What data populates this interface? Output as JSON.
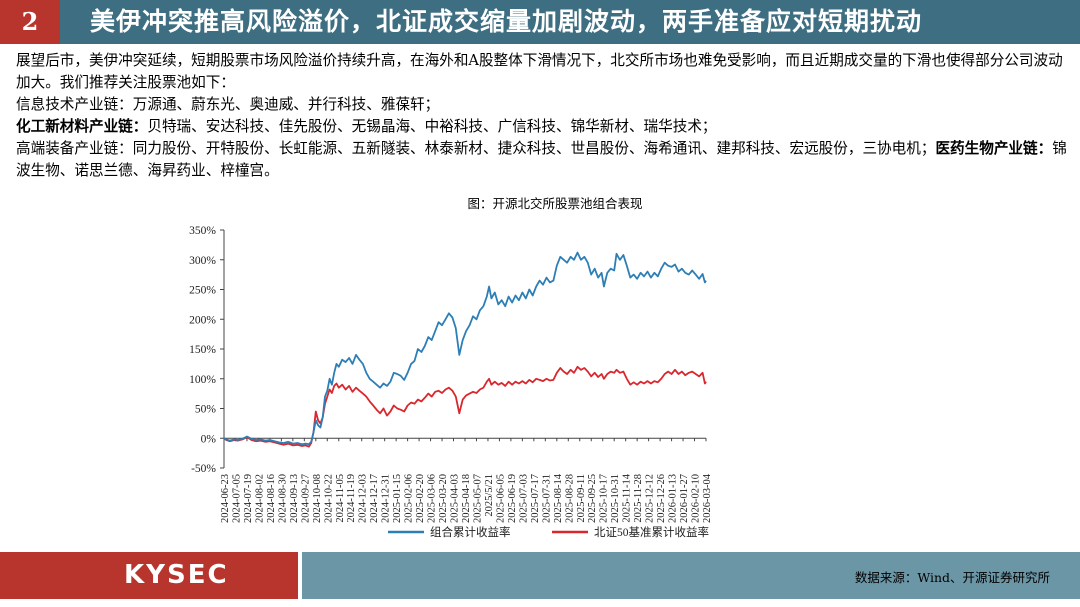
{
  "header": {
    "number": "2",
    "title": "美伊冲突推高风险溢价，北证成交缩量加剧波动，两手准备应对短期扰动"
  },
  "body": {
    "intro": "展望后市，美伊冲突延续，短期股票市场风险溢价持续升高，在海外和A股整体下滑情况下，北交所市场也难免受影响，而且近期成交量的下滑也使得部分公司波动加大。我们推荐关注股票池如下：",
    "chain1_label": "信息技术产业链：",
    "chain1_items": "万源通、蔚东光、奥迪威、并行科技、雅葆轩；",
    "chain2_label": "化工新材料产业链：",
    "chain2_items": "贝特瑞、安达科技、佳先股份、无锡晶海、中裕科技、广信科技、锦华新材、瑞华技术；",
    "chain3_label": "高端装备产业链：",
    "chain3_items": "同力股份、开特股份、长虹能源、五新隧装、林泰新材、捷众科技、世昌股份、海希通讯、建邦科技、宏远股份，三协电机；",
    "chain4_label": "医药生物产业链：",
    "chain4_items": "锦波生物、诺思兰德、海昇药业、梓橦宫。"
  },
  "chart_title": "图：开源北交所股票池组合表现",
  "chart_data": {
    "type": "line",
    "ylim": [
      -50,
      350
    ],
    "yticks": [
      "350%",
      "300%",
      "250%",
      "200%",
      "150%",
      "100%",
      "50%",
      "0%",
      "-50%"
    ],
    "ytick_values": [
      350,
      300,
      250,
      200,
      150,
      100,
      50,
      0,
      -50
    ],
    "grid": false,
    "legend_position": "bottom",
    "x_labels": [
      "2024-06-23",
      "2024-07-05",
      "2024-07-19",
      "2024-08-02",
      "2024-08-16",
      "2024-08-30",
      "2024-09-13",
      "2024-09-27",
      "2024-10-08",
      "2024-10-22",
      "2024-11-05",
      "2024-11-19",
      "2024-12-03",
      "2024-12-17",
      "2024-12-31",
      "2025-01-15",
      "2025-02-06",
      "2025-02-20",
      "2025-03-06",
      "2025-03-20",
      "2025-04-03",
      "2025-04-18",
      "2025-05-07",
      "2025/5/21",
      "2025-06-05",
      "2025-06-19",
      "2025-07-03",
      "2025-07-17",
      "2025-07-31",
      "2025-08-14",
      "2025-08-28",
      "2025-09-11",
      "2025-09-25",
      "2025-10-17",
      "2025-10-31",
      "2025-11-14",
      "2025-11-28",
      "2025-12-12",
      "2025-12-26",
      "2026-01-13",
      "2026-01-27",
      "2026-02-10",
      "2026-03-04"
    ],
    "series": [
      {
        "name": "组合累计收益率",
        "color": "#2e7eb6",
        "points": [
          [
            0,
            0
          ],
          [
            0.2,
            -2
          ],
          [
            0.5,
            -4
          ],
          [
            0.9,
            -2
          ],
          [
            1.2,
            -3
          ],
          [
            1.6,
            -1
          ],
          [
            2.0,
            3
          ],
          [
            2.4,
            -1
          ],
          [
            2.8,
            -3
          ],
          [
            3.2,
            -2
          ],
          [
            3.6,
            -4
          ],
          [
            4.0,
            -3
          ],
          [
            4.4,
            -5
          ],
          [
            4.8,
            -7
          ],
          [
            5.2,
            -8
          ],
          [
            5.6,
            -6
          ],
          [
            6.0,
            -9
          ],
          [
            6.4,
            -8
          ],
          [
            6.8,
            -10
          ],
          [
            7.1,
            -9
          ],
          [
            7.4,
            -10
          ],
          [
            7.6,
            -6
          ],
          [
            7.8,
            10
          ],
          [
            8.0,
            30
          ],
          [
            8.2,
            22
          ],
          [
            8.4,
            18
          ],
          [
            8.6,
            35
          ],
          [
            8.8,
            70
          ],
          [
            9.0,
            80
          ],
          [
            9.2,
            100
          ],
          [
            9.4,
            90
          ],
          [
            9.6,
            110
          ],
          [
            9.8,
            125
          ],
          [
            10.0,
            120
          ],
          [
            10.3,
            132
          ],
          [
            10.6,
            128
          ],
          [
            10.9,
            135
          ],
          [
            11.2,
            125
          ],
          [
            11.5,
            140
          ],
          [
            11.8,
            132
          ],
          [
            12.1,
            125
          ],
          [
            12.4,
            110
          ],
          [
            12.7,
            100
          ],
          [
            13.0,
            95
          ],
          [
            13.3,
            90
          ],
          [
            13.6,
            85
          ],
          [
            13.9,
            92
          ],
          [
            14.2,
            88
          ],
          [
            14.5,
            95
          ],
          [
            14.8,
            110
          ],
          [
            15.1,
            108
          ],
          [
            15.4,
            105
          ],
          [
            15.7,
            98
          ],
          [
            16.0,
            110
          ],
          [
            16.3,
            125
          ],
          [
            16.6,
            130
          ],
          [
            16.9,
            150
          ],
          [
            17.2,
            145
          ],
          [
            17.5,
            155
          ],
          [
            17.8,
            170
          ],
          [
            18.1,
            165
          ],
          [
            18.4,
            180
          ],
          [
            18.7,
            195
          ],
          [
            19.0,
            190
          ],
          [
            19.3,
            200
          ],
          [
            19.6,
            210
          ],
          [
            19.9,
            203
          ],
          [
            20.2,
            185
          ],
          [
            20.5,
            140
          ],
          [
            20.8,
            165
          ],
          [
            21.1,
            180
          ],
          [
            21.4,
            190
          ],
          [
            21.7,
            205
          ],
          [
            22.0,
            200
          ],
          [
            22.3,
            215
          ],
          [
            22.6,
            222
          ],
          [
            22.9,
            238
          ],
          [
            23.1,
            255
          ],
          [
            23.3,
            235
          ],
          [
            23.6,
            245
          ],
          [
            23.9,
            225
          ],
          [
            24.2,
            232
          ],
          [
            24.5,
            222
          ],
          [
            24.8,
            238
          ],
          [
            25.1,
            228
          ],
          [
            25.4,
            240
          ],
          [
            25.7,
            232
          ],
          [
            26.0,
            245
          ],
          [
            26.3,
            235
          ],
          [
            26.6,
            250
          ],
          [
            26.9,
            240
          ],
          [
            27.2,
            255
          ],
          [
            27.5,
            265
          ],
          [
            27.8,
            258
          ],
          [
            28.1,
            270
          ],
          [
            28.4,
            262
          ],
          [
            28.7,
            265
          ],
          [
            29.0,
            290
          ],
          [
            29.3,
            305
          ],
          [
            29.6,
            300
          ],
          [
            29.9,
            295
          ],
          [
            30.2,
            305
          ],
          [
            30.5,
            300
          ],
          [
            30.8,
            312
          ],
          [
            31.1,
            300
          ],
          [
            31.4,
            305
          ],
          [
            31.7,
            295
          ],
          [
            32.0,
            275
          ],
          [
            32.3,
            285
          ],
          [
            32.6,
            270
          ],
          [
            32.9,
            278
          ],
          [
            33.1,
            255
          ],
          [
            33.4,
            278
          ],
          [
            33.7,
            285
          ],
          [
            34.0,
            282
          ],
          [
            34.2,
            310
          ],
          [
            34.5,
            300
          ],
          [
            34.8,
            308
          ],
          [
            35.1,
            290
          ],
          [
            35.4,
            270
          ],
          [
            35.7,
            275
          ],
          [
            36.0,
            268
          ],
          [
            36.3,
            278
          ],
          [
            36.6,
            272
          ],
          [
            36.9,
            280
          ],
          [
            37.2,
            270
          ],
          [
            37.5,
            278
          ],
          [
            37.8,
            272
          ],
          [
            38.1,
            285
          ],
          [
            38.4,
            295
          ],
          [
            38.7,
            290
          ],
          [
            39.0,
            288
          ],
          [
            39.3,
            292
          ],
          [
            39.6,
            280
          ],
          [
            39.9,
            285
          ],
          [
            40.2,
            278
          ],
          [
            40.5,
            275
          ],
          [
            40.8,
            282
          ],
          [
            41.1,
            275
          ],
          [
            41.4,
            268
          ],
          [
            41.7,
            276
          ],
          [
            41.9,
            262
          ],
          [
            42.0,
            265
          ]
        ]
      },
      {
        "name": "北证50基准累计收益率",
        "color": "#d9272e",
        "points": [
          [
            0,
            0
          ],
          [
            0.2,
            -3
          ],
          [
            0.5,
            -5
          ],
          [
            0.9,
            -3
          ],
          [
            1.2,
            -4
          ],
          [
            1.6,
            -2
          ],
          [
            2.0,
            2
          ],
          [
            2.4,
            -3
          ],
          [
            2.8,
            -5
          ],
          [
            3.2,
            -4
          ],
          [
            3.6,
            -6
          ],
          [
            4.0,
            -5
          ],
          [
            4.4,
            -7
          ],
          [
            4.8,
            -9
          ],
          [
            5.2,
            -11
          ],
          [
            5.6,
            -9
          ],
          [
            6.0,
            -12
          ],
          [
            6.4,
            -11
          ],
          [
            6.8,
            -13
          ],
          [
            7.1,
            -12
          ],
          [
            7.4,
            -14
          ],
          [
            7.6,
            -8
          ],
          [
            7.8,
            10
          ],
          [
            8.0,
            45
          ],
          [
            8.2,
            30
          ],
          [
            8.4,
            25
          ],
          [
            8.6,
            35
          ],
          [
            8.8,
            58
          ],
          [
            9.0,
            70
          ],
          [
            9.2,
            82
          ],
          [
            9.4,
            76
          ],
          [
            9.6,
            88
          ],
          [
            9.8,
            92
          ],
          [
            10.0,
            85
          ],
          [
            10.3,
            90
          ],
          [
            10.6,
            82
          ],
          [
            10.9,
            88
          ],
          [
            11.2,
            78
          ],
          [
            11.5,
            85
          ],
          [
            11.8,
            80
          ],
          [
            12.1,
            75
          ],
          [
            12.4,
            70
          ],
          [
            12.7,
            62
          ],
          [
            13.0,
            55
          ],
          [
            13.3,
            48
          ],
          [
            13.6,
            42
          ],
          [
            13.9,
            50
          ],
          [
            14.2,
            38
          ],
          [
            14.5,
            45
          ],
          [
            14.8,
            55
          ],
          [
            15.1,
            50
          ],
          [
            15.4,
            48
          ],
          [
            15.7,
            45
          ],
          [
            16.0,
            55
          ],
          [
            16.3,
            60
          ],
          [
            16.6,
            58
          ],
          [
            16.9,
            65
          ],
          [
            17.2,
            62
          ],
          [
            17.5,
            68
          ],
          [
            17.8,
            75
          ],
          [
            18.1,
            70
          ],
          [
            18.4,
            78
          ],
          [
            18.7,
            80
          ],
          [
            19.0,
            76
          ],
          [
            19.3,
            82
          ],
          [
            19.6,
            85
          ],
          [
            19.9,
            80
          ],
          [
            20.2,
            70
          ],
          [
            20.5,
            42
          ],
          [
            20.8,
            65
          ],
          [
            21.1,
            72
          ],
          [
            21.4,
            75
          ],
          [
            21.7,
            78
          ],
          [
            22.0,
            76
          ],
          [
            22.3,
            82
          ],
          [
            22.6,
            85
          ],
          [
            22.9,
            95
          ],
          [
            23.1,
            100
          ],
          [
            23.3,
            90
          ],
          [
            23.6,
            95
          ],
          [
            23.9,
            90
          ],
          [
            24.2,
            93
          ],
          [
            24.5,
            88
          ],
          [
            24.8,
            95
          ],
          [
            25.1,
            90
          ],
          [
            25.4,
            95
          ],
          [
            25.7,
            92
          ],
          [
            26.0,
            96
          ],
          [
            26.3,
            92
          ],
          [
            26.6,
            98
          ],
          [
            26.9,
            94
          ],
          [
            27.2,
            100
          ],
          [
            27.5,
            98
          ],
          [
            27.8,
            96
          ],
          [
            28.1,
            100
          ],
          [
            28.4,
            97
          ],
          [
            28.7,
            98
          ],
          [
            29.0,
            110
          ],
          [
            29.3,
            118
          ],
          [
            29.6,
            112
          ],
          [
            29.9,
            108
          ],
          [
            30.2,
            115
          ],
          [
            30.5,
            110
          ],
          [
            30.8,
            120
          ],
          [
            31.1,
            115
          ],
          [
            31.4,
            118
          ],
          [
            31.7,
            112
          ],
          [
            32.0,
            104
          ],
          [
            32.3,
            110
          ],
          [
            32.6,
            103
          ],
          [
            32.9,
            108
          ],
          [
            33.1,
            100
          ],
          [
            33.4,
            108
          ],
          [
            33.7,
            112
          ],
          [
            34.0,
            110
          ],
          [
            34.2,
            115
          ],
          [
            34.5,
            110
          ],
          [
            34.8,
            112
          ],
          [
            35.1,
            100
          ],
          [
            35.4,
            90
          ],
          [
            35.7,
            94
          ],
          [
            36.0,
            90
          ],
          [
            36.3,
            95
          ],
          [
            36.6,
            92
          ],
          [
            36.9,
            96
          ],
          [
            37.2,
            92
          ],
          [
            37.5,
            96
          ],
          [
            37.8,
            94
          ],
          [
            38.1,
            100
          ],
          [
            38.4,
            108
          ],
          [
            38.7,
            112
          ],
          [
            39.0,
            108
          ],
          [
            39.3,
            115
          ],
          [
            39.6,
            108
          ],
          [
            39.9,
            112
          ],
          [
            40.2,
            106
          ],
          [
            40.5,
            110
          ],
          [
            40.8,
            112
          ],
          [
            41.1,
            108
          ],
          [
            41.4,
            104
          ],
          [
            41.7,
            110
          ],
          [
            41.9,
            92
          ],
          [
            42.0,
            95
          ]
        ]
      }
    ]
  },
  "footer": {
    "logo": "KYSEC",
    "source": "数据来源：Wind、开源证券研究所"
  },
  "colors": {
    "header_bg": "#3d6e82",
    "accent_red": "#b8352d",
    "footer_blue": "#6b96a6"
  }
}
